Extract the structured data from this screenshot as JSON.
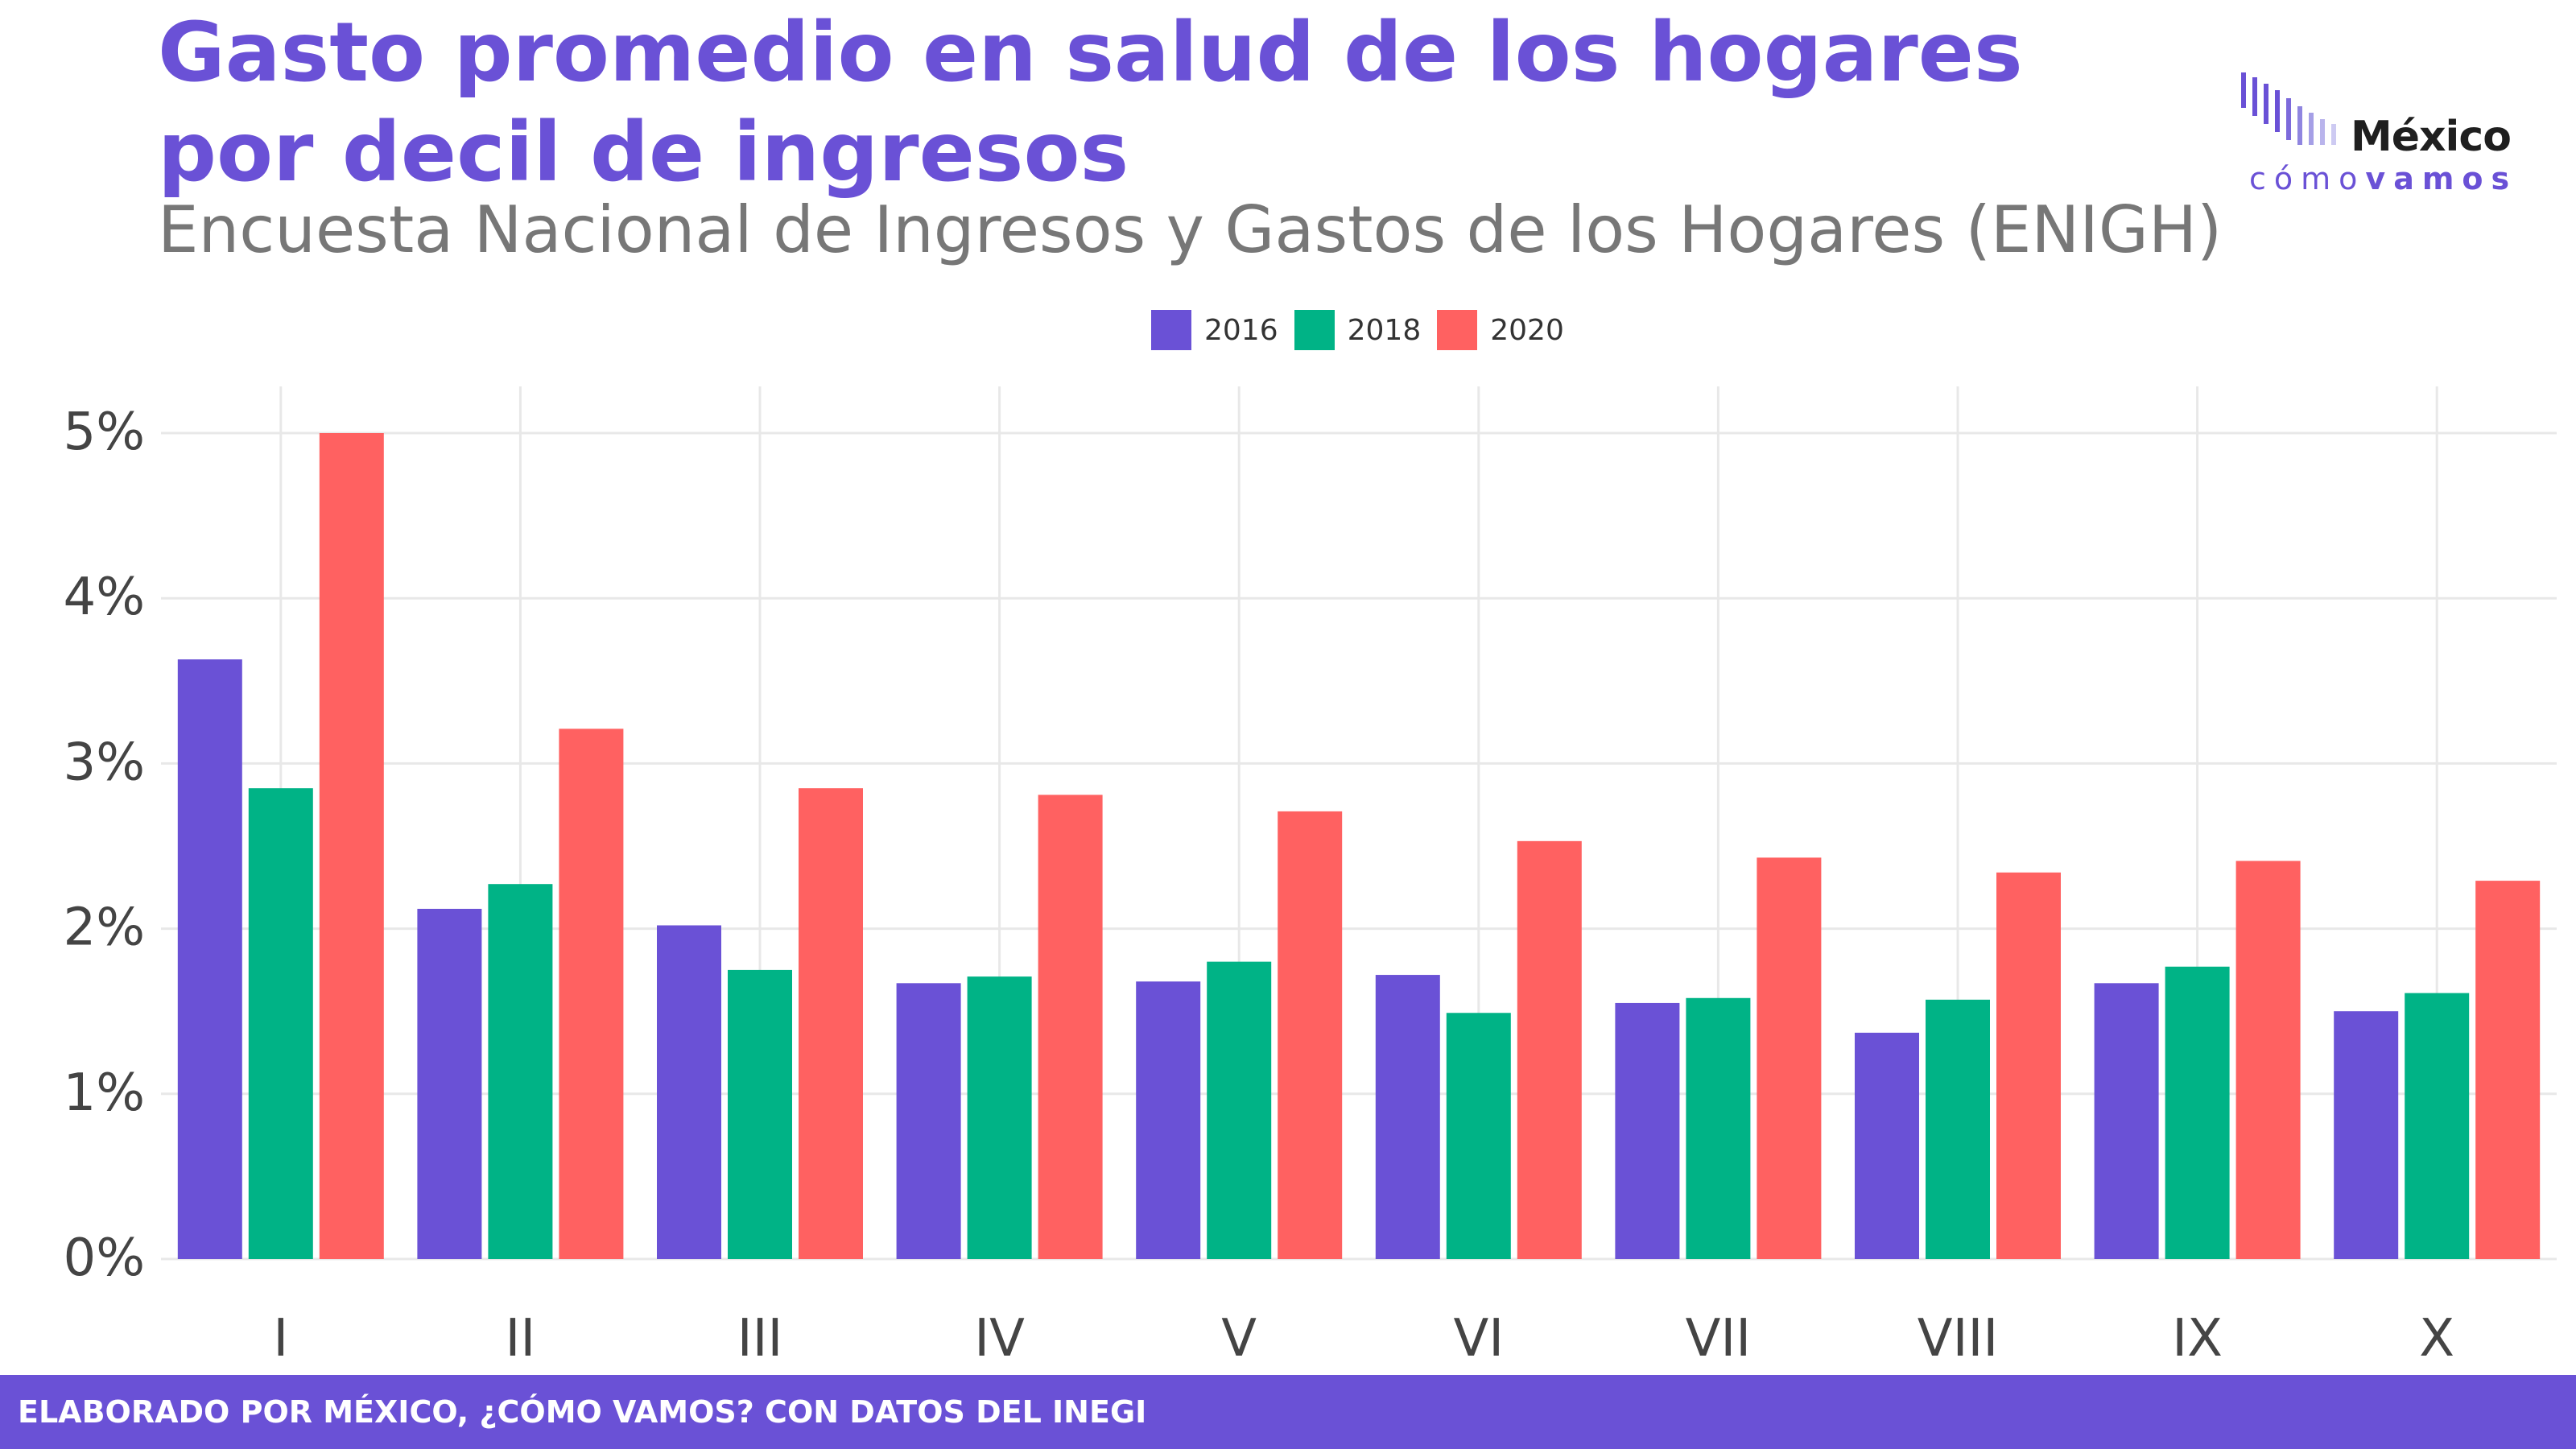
{
  "header": {
    "title_line1": "Gasto promedio en salud de los hogares",
    "title_line2": "por decil de ingresos",
    "subtitle": "Encuesta Nacional de Ingresos y Gastos de los Hogares (ENIGH)"
  },
  "logo": {
    "word1": "México",
    "word2a": "cómo",
    "word2b": "vamos"
  },
  "footer": {
    "text": "ELABORADO POR MÉXICO, ¿CÓMO VAMOS? CON DATOS DEL INEGI"
  },
  "colors": {
    "2016": "#6a51d6",
    "2018": "#00b386",
    "2020": "#ff6161",
    "accent": "#6a51d6"
  },
  "chart_data": {
    "type": "bar",
    "title": "Gasto promedio en salud de los hogares por decil de ingresos",
    "subtitle": "Encuesta Nacional de Ingresos y Gastos de los Hogares (ENIGH)",
    "categories": [
      "I",
      "II",
      "III",
      "IV",
      "V",
      "VI",
      "VII",
      "VIII",
      "IX",
      "X"
    ],
    "series": [
      {
        "name": "2016",
        "color": "#6a51d6",
        "values": [
          3.63,
          2.12,
          2.02,
          1.67,
          1.68,
          1.72,
          1.55,
          1.37,
          1.67,
          1.5
        ]
      },
      {
        "name": "2018",
        "color": "#00b386",
        "values": [
          2.85,
          2.27,
          1.75,
          1.71,
          1.8,
          1.49,
          1.58,
          1.57,
          1.77,
          1.61
        ]
      },
      {
        "name": "2020",
        "color": "#ff6161",
        "values": [
          5.0,
          3.21,
          2.85,
          2.81,
          2.71,
          2.53,
          2.43,
          2.34,
          2.41,
          2.29
        ]
      }
    ],
    "y_ticks": [
      "0%",
      "1%",
      "2%",
      "3%",
      "4%",
      "5%"
    ],
    "ylim": [
      0,
      5.25
    ],
    "xlabel": "",
    "ylabel": "",
    "grid": true,
    "legend": "top-center"
  }
}
